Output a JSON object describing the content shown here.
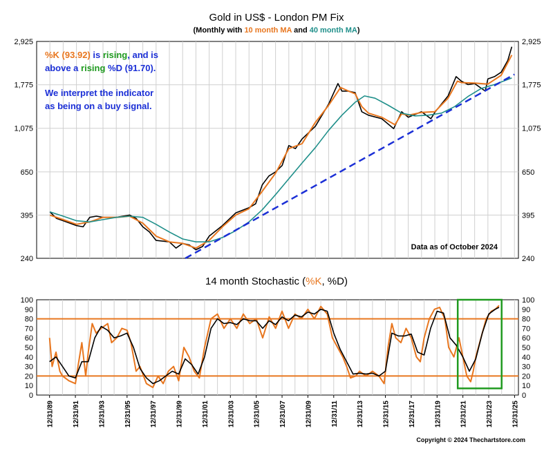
{
  "colors": {
    "price": "#000000",
    "ma10": "#e8761e",
    "ma40": "#1f8f8a",
    "trendline": "#1b2fd6",
    "k": "#e8761e",
    "d": "#000000",
    "threshold": "#e8761e",
    "highlight_box": "#1f9a1f",
    "annotation_orange": "#e8761e",
    "annotation_green": "#1f9a1f",
    "annotation_blue": "#1b2fd6",
    "grid": "#cfcfcf"
  },
  "top_panel": {
    "title": "Gold in US$ - London PM Fix",
    "subtitle_prefix": "(Monthly with ",
    "subtitle_ma10": "10 month MA",
    "subtitle_and": " and ",
    "subtitle_ma40": "40 month MA",
    "subtitle_suffix": ")",
    "annotation": {
      "line1_k": "%K (93.92)",
      "line1_mid": " is ",
      "line1_rising": "rising",
      "line1_end": ", and is",
      "line2_start": "above a ",
      "line2_rising": "rising",
      "line2_d": " %D (91.70).",
      "line3": "We interpret the indicator",
      "line4": "as being on a buy signal."
    },
    "data_note": "Data as of October 2024"
  },
  "bottom_panel": {
    "title_prefix": "14 month Stochastic (",
    "title_k": "%K",
    "title_comma": ", ",
    "title_d": "%D",
    "title_suffix": ")",
    "copyright": "Copyright © 2024 Thechartstore.com"
  },
  "chart_data": [
    {
      "type": "line",
      "scale": "log",
      "ylim": [
        240,
        2925
      ],
      "yticks": [
        240,
        395,
        650,
        1075,
        1775,
        2925
      ],
      "ytick_labels": [
        "240",
        "395",
        "650",
        "1,075",
        "1,775",
        "2,925"
      ],
      "xlim": [
        1989.0,
        2025.3
      ],
      "series": [
        {
          "name": "Gold",
          "x": [
            1990.0,
            1990.5,
            1991.0,
            1991.5,
            1992.0,
            1992.5,
            1993.0,
            1993.5,
            1994.0,
            1995.0,
            1996.0,
            1996.5,
            1997.0,
            1997.5,
            1998.0,
            1999.0,
            1999.5,
            2000.0,
            2000.5,
            2001.0,
            2001.5,
            2002.0,
            2003.0,
            2004.0,
            2005.0,
            2005.5,
            2006.0,
            2006.5,
            2007.0,
            2007.5,
            2008.0,
            2008.5,
            2009.0,
            2010.0,
            2010.5,
            2011.0,
            2011.7,
            2012.0,
            2012.5,
            2013.0,
            2013.5,
            2014.0,
            2015.0,
            2015.9,
            2016.5,
            2017.0,
            2018.0,
            2018.7,
            2019.0,
            2019.5,
            2020.0,
            2020.6,
            2021.0,
            2021.5,
            2022.0,
            2022.8,
            2023.0,
            2023.5,
            2024.0,
            2024.5,
            2024.8
          ],
          "y": [
            410,
            380,
            370,
            360,
            350,
            345,
            385,
            390,
            385,
            385,
            395,
            380,
            345,
            325,
            295,
            290,
            270,
            285,
            280,
            265,
            275,
            310,
            350,
            405,
            430,
            450,
            560,
            620,
            650,
            700,
            880,
            850,
            950,
            1100,
            1250,
            1420,
            1800,
            1650,
            1650,
            1620,
            1300,
            1250,
            1200,
            1070,
            1300,
            1220,
            1300,
            1200,
            1290,
            1420,
            1560,
            1950,
            1850,
            1780,
            1800,
            1650,
            1900,
            1950,
            2050,
            2350,
            2750
          ]
        },
        {
          "name": "10 month MA",
          "x": [
            1990.0,
            1991.0,
            1992.0,
            1993.0,
            1994.0,
            1995.0,
            1996.0,
            1997.0,
            1998.0,
            1999.0,
            2000.0,
            2001.0,
            2002.0,
            2003.0,
            2004.0,
            2005.0,
            2006.0,
            2007.0,
            2008.0,
            2009.0,
            2010.0,
            2011.0,
            2011.9,
            2012.5,
            2013.0,
            2013.5,
            2014.0,
            2015.0,
            2016.0,
            2016.5,
            2017.0,
            2018.0,
            2019.0,
            2020.0,
            2020.7,
            2021.0,
            2022.0,
            2023.0,
            2024.0,
            2024.8
          ],
          "y": [
            395,
            375,
            355,
            365,
            385,
            385,
            390,
            360,
            310,
            290,
            285,
            270,
            295,
            345,
            395,
            425,
            520,
            640,
            850,
            900,
            1150,
            1400,
            1720,
            1650,
            1600,
            1380,
            1280,
            1220,
            1120,
            1270,
            1250,
            1290,
            1300,
            1520,
            1850,
            1820,
            1810,
            1790,
            1980,
            2500
          ]
        },
        {
          "name": "40 month MA",
          "x": [
            1990.0,
            1991.0,
            1992.0,
            1993.0,
            1994.0,
            1995.0,
            1996.0,
            1997.0,
            1998.0,
            1999.0,
            2000.0,
            2001.0,
            2002.0,
            2003.0,
            2004.0,
            2005.0,
            2006.0,
            2007.0,
            2008.0,
            2009.0,
            2010.0,
            2011.0,
            2012.0,
            2013.0,
            2013.7,
            2014.5,
            2015.5,
            2016.5,
            2017.5,
            2018.5,
            2019.5,
            2020.5,
            2021.5,
            2022.5,
            2023.5,
            2024.8
          ],
          "y": [
            410,
            390,
            370,
            365,
            375,
            385,
            390,
            385,
            355,
            325,
            300,
            290,
            290,
            305,
            330,
            365,
            420,
            500,
            600,
            720,
            860,
            1050,
            1250,
            1450,
            1560,
            1520,
            1400,
            1280,
            1240,
            1250,
            1280,
            1380,
            1550,
            1700,
            1780,
            1920
          ]
        },
        {
          "name": "Trendline",
          "x": [
            2000.2,
            2025.0
          ],
          "y": [
            240,
            2000
          ]
        }
      ]
    },
    {
      "type": "line",
      "ylim": [
        0,
        100
      ],
      "yticks": [
        0,
        10,
        20,
        30,
        40,
        50,
        60,
        70,
        80,
        90,
        100
      ],
      "ytick_labels": [
        "0",
        "10",
        "20",
        "30",
        "40",
        "50",
        "60",
        "70",
        "80",
        "90",
        "100"
      ],
      "x_tick_labels": [
        "12/31/89",
        "12/31/91",
        "12/31/93",
        "12/31/95",
        "12/31/97",
        "12/31/99",
        "12/31/01",
        "12/31/03",
        "12/31/05",
        "12/31/07",
        "12/31/09",
        "12/31/11",
        "12/31/13",
        "12/31/15",
        "12/31/17",
        "12/31/19",
        "12/31/21",
        "12/31/23",
        "12/31/25"
      ],
      "x_tick_values": [
        1990,
        1992,
        1994,
        1996,
        1998,
        2000,
        2002,
        2004,
        2006,
        2008,
        2010,
        2012,
        2014,
        2016,
        2018,
        2020,
        2022,
        2024,
        2026
      ],
      "xlim": [
        1989.0,
        2026.3
      ],
      "thresholds": [
        20,
        80
      ],
      "highlight_range": {
        "x": [
          2021.6,
          2025.0
        ],
        "y": [
          7,
          100
        ]
      },
      "series": [
        {
          "name": "%K",
          "x": [
            1990.0,
            1990.2,
            1990.5,
            1990.8,
            1991.0,
            1991.5,
            1992.0,
            1992.2,
            1992.5,
            1992.8,
            1993.0,
            1993.3,
            1993.6,
            1994.0,
            1994.5,
            1994.8,
            1995.2,
            1995.6,
            1996.0,
            1996.3,
            1996.7,
            1997.0,
            1997.5,
            1998.0,
            1998.4,
            1998.8,
            1999.2,
            1999.6,
            2000.0,
            2000.4,
            2000.8,
            2001.2,
            2001.6,
            2002.0,
            2002.5,
            2003.0,
            2003.5,
            2004.0,
            2004.5,
            2005.0,
            2005.5,
            2006.0,
            2006.5,
            2007.0,
            2007.5,
            2008.0,
            2008.5,
            2009.0,
            2009.5,
            2010.0,
            2010.5,
            2011.0,
            2011.5,
            2011.9,
            2012.3,
            2012.7,
            2013.0,
            2013.3,
            2013.7,
            2014.0,
            2014.5,
            2015.0,
            2015.5,
            2015.9,
            2016.2,
            2016.5,
            2016.8,
            2017.2,
            2017.6,
            2018.0,
            2018.4,
            2018.7,
            2019.0,
            2019.4,
            2019.8,
            2020.2,
            2020.6,
            2020.9,
            2021.3,
            2021.7,
            2022.0,
            2022.3,
            2022.6,
            2022.8,
            2023.0,
            2023.4,
            2023.8,
            2024.2,
            2024.5,
            2024.8
          ],
          "y": [
            60,
            30,
            45,
            25,
            20,
            15,
            12,
            30,
            55,
            20,
            45,
            75,
            65,
            70,
            75,
            55,
            60,
            70,
            68,
            55,
            25,
            30,
            12,
            8,
            20,
            12,
            25,
            30,
            15,
            50,
            40,
            25,
            18,
            50,
            80,
            85,
            70,
            80,
            70,
            85,
            75,
            80,
            60,
            82,
            70,
            88,
            70,
            85,
            80,
            90,
            80,
            93,
            85,
            60,
            50,
            40,
            30,
            18,
            20,
            25,
            20,
            25,
            20,
            12,
            50,
            75,
            60,
            55,
            70,
            60,
            40,
            35,
            60,
            80,
            90,
            92,
            80,
            50,
            40,
            60,
            40,
            20,
            14,
            25,
            40,
            60,
            80,
            88,
            90,
            94
          ]
        },
        {
          "name": "%D",
          "x": [
            1990.0,
            1990.5,
            1991.0,
            1991.5,
            1992.0,
            1992.5,
            1993.0,
            1993.5,
            1994.0,
            1994.5,
            1995.0,
            1995.5,
            1996.0,
            1996.5,
            1997.0,
            1997.5,
            1998.0,
            1998.5,
            1999.0,
            1999.5,
            2000.0,
            2000.5,
            2001.0,
            2001.5,
            2002.0,
            2002.5,
            2003.0,
            2003.5,
            2004.0,
            2004.5,
            2005.0,
            2005.5,
            2006.0,
            2006.5,
            2007.0,
            2007.5,
            2008.0,
            2008.5,
            2009.0,
            2009.5,
            2010.0,
            2010.5,
            2011.0,
            2011.5,
            2012.0,
            2012.5,
            2013.0,
            2013.5,
            2014.0,
            2014.5,
            2015.0,
            2015.5,
            2016.0,
            2016.5,
            2017.0,
            2017.5,
            2018.0,
            2018.5,
            2019.0,
            2019.5,
            2020.0,
            2020.5,
            2021.0,
            2021.5,
            2022.0,
            2022.5,
            2023.0,
            2023.5,
            2024.0,
            2024.5,
            2024.8
          ],
          "y": [
            35,
            40,
            30,
            20,
            18,
            35,
            35,
            60,
            72,
            68,
            60,
            62,
            65,
            50,
            28,
            18,
            12,
            15,
            20,
            25,
            22,
            38,
            32,
            22,
            40,
            70,
            80,
            75,
            76,
            74,
            80,
            78,
            78,
            70,
            78,
            74,
            82,
            78,
            84,
            82,
            87,
            85,
            90,
            88,
            65,
            48,
            35,
            22,
            23,
            22,
            23,
            20,
            25,
            65,
            62,
            62,
            64,
            45,
            42,
            70,
            88,
            86,
            60,
            52,
            40,
            25,
            38,
            65,
            85,
            90,
            92
          ]
        }
      ]
    }
  ]
}
